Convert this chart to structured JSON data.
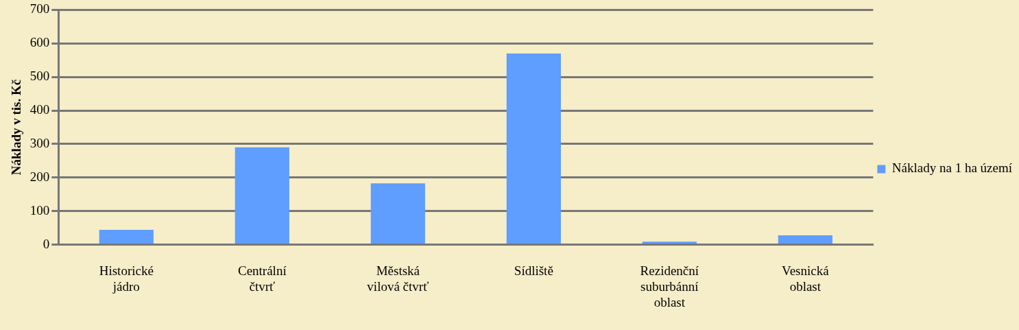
{
  "chart_data": {
    "type": "bar",
    "ylabel": "Náklady v tis. Kč",
    "categories": [
      "Historické jádro",
      "Centrální čtvrť",
      "Městská vilová čtvrť",
      "Sídliště",
      "Rezidenční suburbánní oblast",
      "Vesnická oblast"
    ],
    "series": [
      {
        "name": "Náklady na 1 ha území",
        "color": "#5f9dff",
        "values": [
          44,
          290,
          183,
          570,
          9,
          28
        ]
      }
    ],
    "ylim": [
      0,
      700
    ],
    "yticks": [
      0,
      100,
      200,
      300,
      400,
      500,
      600,
      700
    ],
    "grid": "y",
    "legend": "right"
  }
}
